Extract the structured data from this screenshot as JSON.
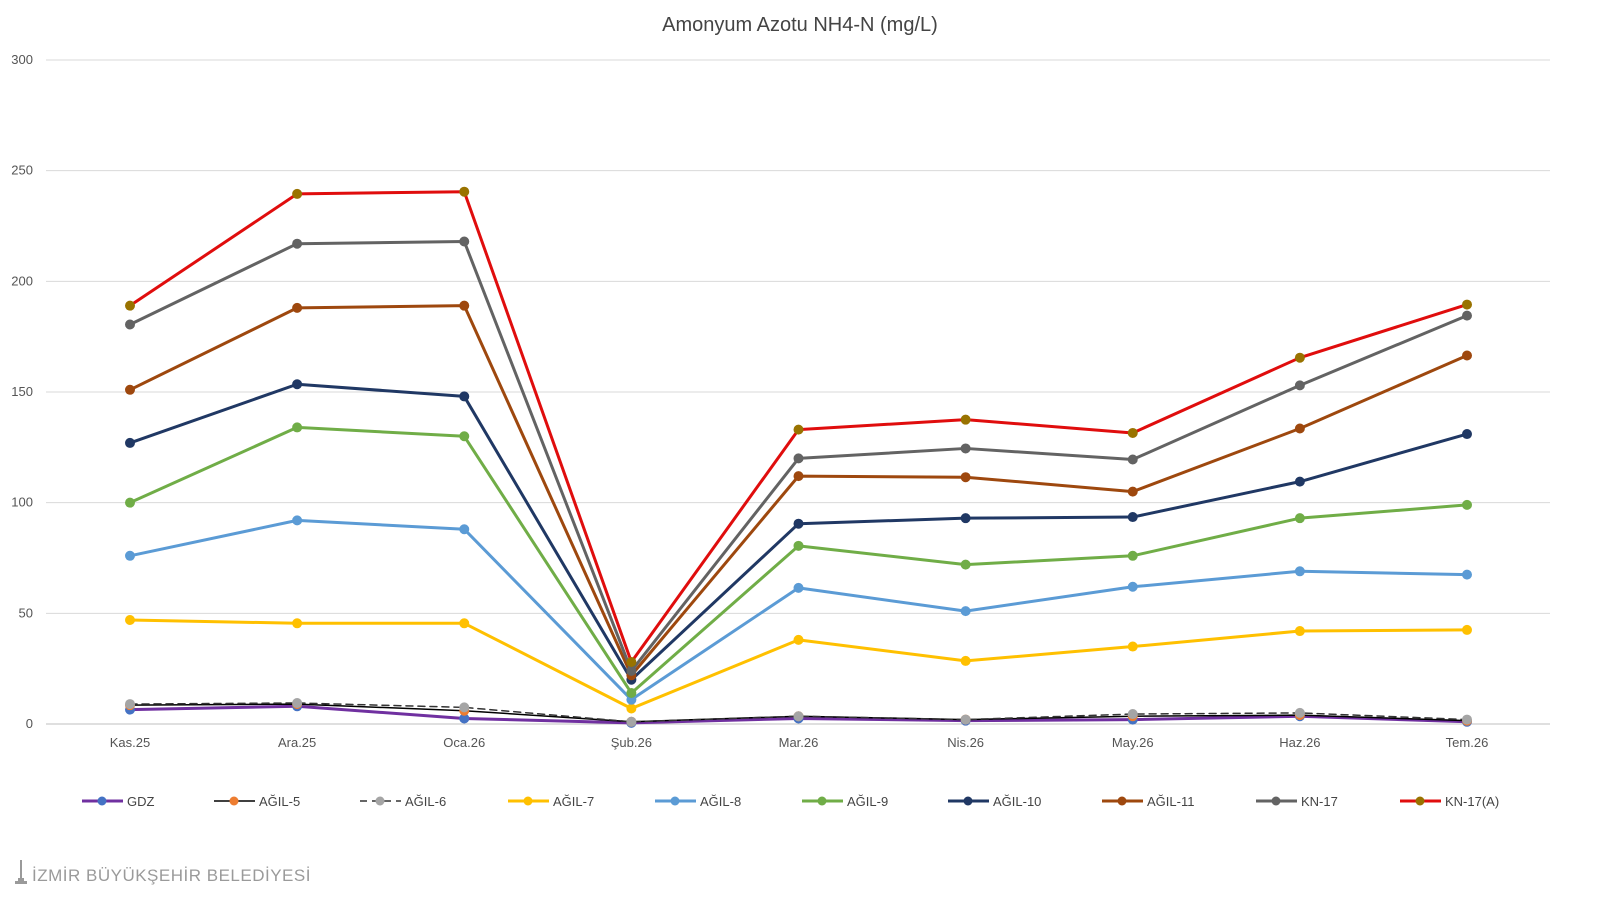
{
  "chart_data": {
    "type": "line",
    "title": "Amonyum Azotu NH4-N (mg/L)",
    "xlabel": "",
    "ylabel": "",
    "categories": [
      "Kas.25",
      "Ara.25",
      "Oca.26",
      "Şub.26",
      "Mar.26",
      "Nis.26",
      "May.26",
      "Haz.26",
      "Tem.26"
    ],
    "ylim": [
      0,
      300
    ],
    "yticks": [
      0,
      50,
      100,
      150,
      200,
      250,
      300
    ],
    "grid": "horizontal",
    "legend_position": "bottom",
    "series": [
      {
        "name": "GDZ",
        "color": "#7030a0",
        "line": "solid",
        "marker_color": "#4472c4",
        "values": [
          6.5,
          8,
          2.5,
          0.5,
          2.5,
          1.5,
          2,
          3.5,
          1
        ]
      },
      {
        "name": "AĞIL-5",
        "color": "#000000",
        "line": "thin",
        "marker_color": "#ed7d31",
        "values": [
          8.5,
          9,
          6,
          1,
          3.5,
          2,
          3.5,
          4,
          1.5
        ]
      },
      {
        "name": "AĞIL-6",
        "color": "#333333",
        "line": "dashed",
        "marker_color": "#a5a5a5",
        "values": [
          9,
          9.5,
          7.5,
          1,
          3.5,
          2,
          4.5,
          5,
          2
        ]
      },
      {
        "name": "AĞIL-7",
        "color": "#ffc000",
        "line": "solid",
        "marker_color": "#ffc000",
        "values": [
          47,
          45.5,
          45.5,
          7,
          38,
          28.5,
          35,
          42,
          42.5
        ]
      },
      {
        "name": "AĞIL-8",
        "color": "#5b9bd5",
        "line": "solid",
        "marker_color": "#5b9bd5",
        "values": [
          76,
          92,
          88,
          11,
          61.5,
          51,
          62,
          69,
          67.5
        ]
      },
      {
        "name": "AĞIL-9",
        "color": "#70ad47",
        "line": "solid",
        "marker_color": "#70ad47",
        "values": [
          100,
          134,
          130,
          14,
          80.5,
          72,
          76,
          93,
          99
        ]
      },
      {
        "name": "AĞIL-10",
        "color": "#203864",
        "line": "solid",
        "marker_color": "#203864",
        "values": [
          127,
          153.5,
          148,
          20,
          90.5,
          93,
          93.5,
          109.5,
          131
        ]
      },
      {
        "name": "AĞIL-11",
        "color": "#9e480e",
        "line": "solid",
        "marker_color": "#9e480e",
        "values": [
          151,
          188,
          189,
          22,
          112,
          111.5,
          105,
          133.5,
          166.5
        ]
      },
      {
        "name": "KN-17",
        "color": "#636363",
        "line": "solid",
        "marker_color": "#636363",
        "values": [
          180.5,
          217,
          218,
          24,
          120,
          124.5,
          119.5,
          153,
          184.5
        ]
      },
      {
        "name": "KN-17(A)",
        "color": "#e00d0d",
        "line": "solid",
        "marker_color": "#997300",
        "values": [
          189,
          239.5,
          240.5,
          28,
          133,
          137.5,
          131.5,
          165.5,
          189.5
        ]
      }
    ]
  },
  "watermark": {
    "text": "İZMİR BÜYÜKŞEHİR BELEDİYESİ"
  }
}
